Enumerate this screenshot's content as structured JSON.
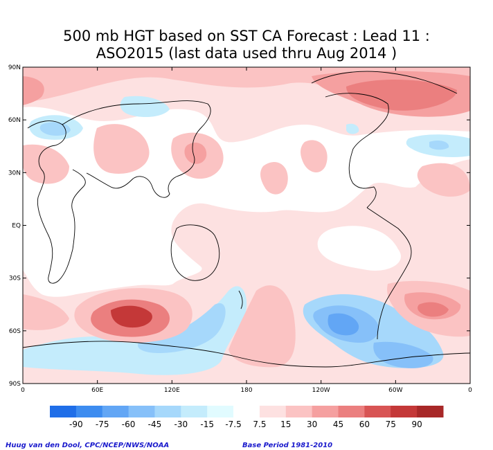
{
  "title": {
    "line1": "500 mb HGT based on SST CA Forecast : Lead 11 :",
    "line2": "ASO2015 (last data used thru Aug 2014 )"
  },
  "map": {
    "lat_labels": [
      "90N",
      "60N",
      "30N",
      "EQ",
      "30S",
      "60S",
      "90S"
    ],
    "lon_labels": [
      "0",
      "60E",
      "120E",
      "180",
      "120W",
      "60W",
      "0"
    ]
  },
  "colorbar": {
    "labels": [
      "-90",
      "-75",
      "-60",
      "-45",
      "-30",
      "-15",
      "-7.5",
      "7.5",
      "15",
      "30",
      "45",
      "60",
      "75",
      "90"
    ],
    "colors": [
      "#1f6ee8",
      "#3d8cf0",
      "#62a6f5",
      "#86c0f9",
      "#a6d8fb",
      "#c4ecfc",
      "#e1fbff",
      "#ffffff",
      "#fde1e1",
      "#fbc3c3",
      "#f5a0a0",
      "#eb7f7f",
      "#d85454",
      "#c43838",
      "#a82828"
    ]
  },
  "footer": {
    "left": "Huug van den Dool, CPC/NCEP/NWS/NOAA",
    "right": "Base Period 1981-2010"
  }
}
